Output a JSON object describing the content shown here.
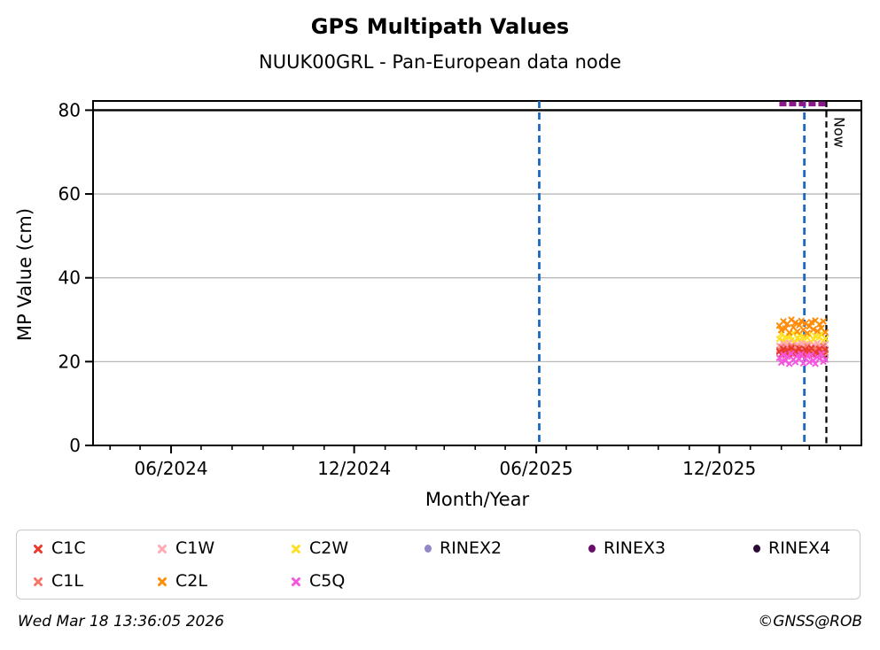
{
  "header": {
    "title": "GPS Multipath Values",
    "subtitle": "NUUK00GRL - Pan-European data node"
  },
  "footer": {
    "timestamp": "Wed Mar 18 13:36:05 2026",
    "credit": "©GNSS@ROB"
  },
  "chart_data": {
    "type": "scatter",
    "title": "GPS Multipath Values",
    "subtitle": "NUUK00GRL - Pan-European data node",
    "xlabel": "Month/Year",
    "ylabel": "MP Value (cm)",
    "ylim": [
      0,
      82.2
    ],
    "y_ticks": [
      0,
      20,
      40,
      60,
      80
    ],
    "grid_color": "#b9b9b9",
    "x_range": {
      "start": "2024-03-15",
      "end": "2026-04-22"
    },
    "x_major_ticks": [
      {
        "date": "2024-06-01",
        "label": "06/2024"
      },
      {
        "date": "2024-12-01",
        "label": "12/2024"
      },
      {
        "date": "2025-06-01",
        "label": "06/2025"
      },
      {
        "date": "2025-12-01",
        "label": "12/2025"
      }
    ],
    "x_minor_ticks_monthly": {
      "start": "2024-04-01",
      "end": "2026-04-01"
    },
    "threshold_line": {
      "y": 80,
      "color": "#000000"
    },
    "vertical_lines": [
      {
        "date": "2025-06-04",
        "color": "#1b67c4",
        "width": 2.8,
        "dash": "8 5",
        "label": ""
      },
      {
        "date": "2026-02-24",
        "color": "#1b67c4",
        "width": 2.8,
        "dash": "8 5",
        "label": ""
      },
      {
        "date": "2026-03-18",
        "color": "#000000",
        "width": 2.2,
        "dash": "7 4.5",
        "label": "Now"
      }
    ],
    "rinex_availability_line": {
      "series": "RINEX3",
      "y": 81.5,
      "start": "2026-01-30",
      "end": "2026-03-17",
      "color": "#8a1a8a",
      "width": 5.5,
      "dash": "8 3"
    },
    "scatter_span": {
      "start": "2026-01-30",
      "end": "2026-03-17"
    },
    "series": [
      {
        "name": "C2W",
        "color": "#ffdf22",
        "marker": "x",
        "values": [
          25.4,
          26.6,
          24.8,
          25.9,
          24.4,
          26.2,
          25.1,
          26.8,
          24.6,
          25.6,
          26.3,
          24.9,
          26.0,
          24.3,
          25.7,
          26.5,
          24.7,
          25.3,
          26.1,
          24.5,
          25.8,
          26.7,
          25.0,
          25.5
        ]
      },
      {
        "name": "C1W",
        "color": "#ffaab4",
        "marker": "x",
        "values": [
          23.8,
          23.1,
          24.3,
          22.9,
          23.9,
          24.5,
          23.2,
          23.7,
          22.8,
          24.1,
          23.4,
          24.4,
          23.0,
          23.8,
          24.2,
          22.9,
          23.5,
          24.0,
          23.2,
          24.4,
          22.8,
          23.7,
          23.3,
          24.1
        ]
      },
      {
        "name": "C1L",
        "color": "#f4776d",
        "marker": "x",
        "values": [
          22.8,
          23.5,
          21.9,
          22.4,
          23.2,
          21.7,
          23.7,
          22.2,
          22.9,
          23.4,
          21.8,
          22.6,
          23.1,
          21.6,
          23.6,
          22.3,
          22.8,
          21.9,
          23.3,
          22.5,
          21.7,
          23.0,
          23.7,
          22.1
        ]
      },
      {
        "name": "C1C",
        "color": "#e8392c",
        "marker": "x",
        "values": [
          22.4,
          21.7,
          23.0,
          22.0,
          22.7,
          21.4,
          23.2,
          21.9,
          22.5,
          21.5,
          23.1,
          22.2,
          21.8,
          22.9,
          21.3,
          22.6,
          23.2,
          21.7,
          22.3,
          21.9,
          23.0,
          22.1,
          21.5,
          22.8
        ]
      },
      {
        "name": "C2L",
        "color": "#ff8c0a",
        "marker": "x",
        "values": [
          28.6,
          27.5,
          29.6,
          27.9,
          29.0,
          26.9,
          30.0,
          28.2,
          29.3,
          27.2,
          28.7,
          29.7,
          27.6,
          29.1,
          26.8,
          28.4,
          29.4,
          27.7,
          29.8,
          27.3,
          28.9,
          28.0,
          29.6,
          27.0
        ]
      },
      {
        "name": "C5Q",
        "color": "#f556de",
        "marker": "x",
        "values": [
          20.9,
          19.8,
          21.6,
          20.2,
          21.2,
          19.5,
          21.9,
          20.5,
          19.9,
          21.4,
          20.6,
          21.8,
          19.6,
          20.8,
          21.3,
          19.9,
          21.6,
          20.3,
          19.5,
          21.1,
          20.7,
          21.9,
          20.0,
          20.5
        ]
      }
    ],
    "legend": {
      "items": [
        {
          "label": "C1C",
          "color": "#e8392c",
          "marker": "x",
          "row": 0,
          "col": 0
        },
        {
          "label": "C1W",
          "color": "#ffaab4",
          "marker": "x",
          "row": 0,
          "col": 1
        },
        {
          "label": "C2W",
          "color": "#ffdf22",
          "marker": "x",
          "row": 0,
          "col": 2
        },
        {
          "label": "RINEX2",
          "color": "#9187c9",
          "marker": "dot",
          "row": 0,
          "col": 3
        },
        {
          "label": "RINEX3",
          "color": "#6a0c6a",
          "marker": "dot",
          "row": 0,
          "col": 4
        },
        {
          "label": "RINEX4",
          "color": "#2b0a35",
          "marker": "dot",
          "row": 0,
          "col": 5
        },
        {
          "label": "C1L",
          "color": "#f4776d",
          "marker": "x",
          "row": 1,
          "col": 0
        },
        {
          "label": "C2L",
          "color": "#ff8c0a",
          "marker": "x",
          "row": 1,
          "col": 1
        },
        {
          "label": "C5Q",
          "color": "#f556de",
          "marker": "x",
          "row": 1,
          "col": 2
        }
      ]
    }
  }
}
